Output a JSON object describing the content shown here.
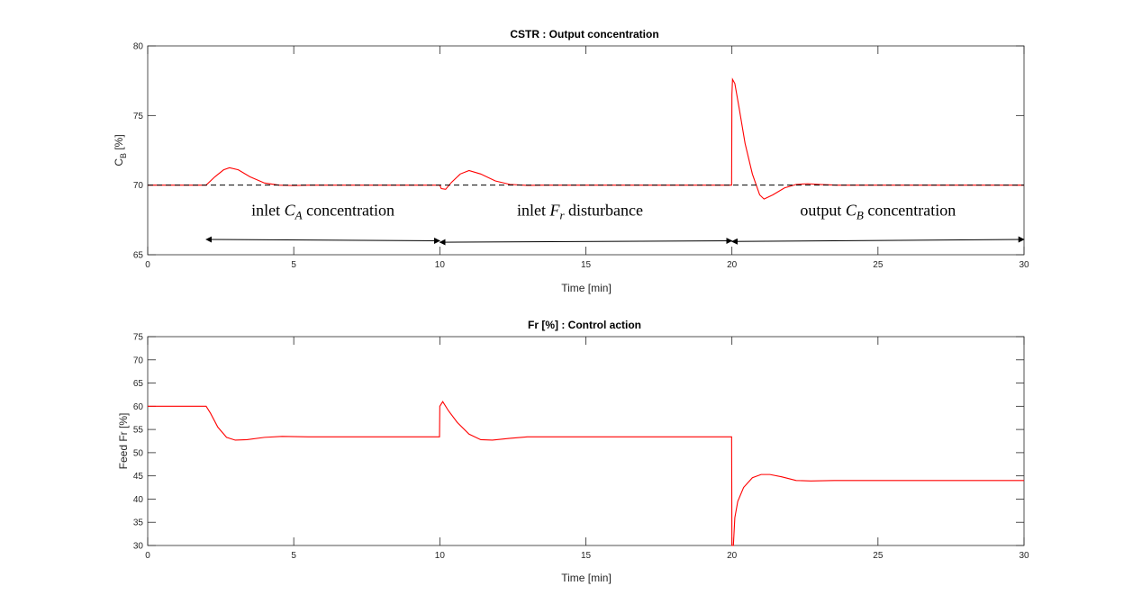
{
  "chart_data": [
    {
      "type": "line",
      "title": "CSTR : Output concentration",
      "xlabel": "Time [min]",
      "ylabel": "C",
      "ylabel_sub": "B",
      "ylabel_unit": " [%]",
      "xlim": [
        0,
        30
      ],
      "ylim": [
        65,
        80
      ],
      "xticks": [
        "0",
        "5",
        "10",
        "15",
        "20",
        "25",
        "30"
      ],
      "yticks": [
        "65",
        "70",
        "75",
        "80"
      ],
      "grid": false,
      "series": [
        {
          "color": "#ff0000",
          "style": "solid",
          "x": [
            0,
            2,
            2.3,
            2.6,
            2.8,
            3.1,
            3.5,
            4.0,
            4.5,
            5.0,
            5.5,
            6.0,
            7,
            8,
            10,
            10.05,
            10.2,
            10.4,
            10.7,
            11.0,
            11.4,
            11.9,
            12.4,
            13.0,
            13.5,
            14,
            16,
            18,
            19.99,
            20.0,
            20.02,
            20.1,
            20.25,
            20.45,
            20.7,
            20.95,
            21.1,
            21.4,
            21.8,
            22.2,
            22.6,
            23.0,
            23.6,
            24.2,
            25,
            27,
            30
          ],
          "y": [
            70.0,
            70.0,
            70.6,
            71.1,
            71.25,
            71.1,
            70.6,
            70.15,
            70.0,
            69.97,
            70.0,
            70.0,
            70.0,
            70.0,
            70.0,
            69.75,
            69.7,
            70.2,
            70.8,
            71.05,
            70.8,
            70.3,
            70.05,
            69.98,
            70.0,
            70.0,
            70.0,
            70.0,
            70.0,
            76.5,
            77.6,
            77.3,
            75.5,
            73.0,
            70.8,
            69.3,
            69.0,
            69.3,
            69.8,
            70.05,
            70.1,
            70.05,
            70.0,
            70.0,
            70.0,
            70.0,
            70.0
          ]
        },
        {
          "color": "#000000",
          "style": "dashed",
          "x": [
            0,
            30
          ],
          "y": [
            70,
            70
          ]
        }
      ],
      "annotations": [
        {
          "text": "inlet ",
          "math": "C",
          "sub": "A",
          "rest": " concentration",
          "x": 6.0,
          "y": 67.8
        },
        {
          "text": "inlet ",
          "math": "F",
          "sub": "r",
          "rest": " disturbance",
          "x": 14.8,
          "y": 67.8
        },
        {
          "text": "output ",
          "math": "C",
          "sub": "B",
          "rest": " concentration",
          "x": 25.0,
          "y": 67.8
        }
      ],
      "arrows": [
        {
          "x1": 2.0,
          "y1": 66.1,
          "x2": 10.0,
          "y2": 66.0
        },
        {
          "x1": 10.0,
          "y1": 65.9,
          "x2": 20.0,
          "y2": 66.0
        },
        {
          "x1": 20.0,
          "y1": 65.95,
          "x2": 30.0,
          "y2": 66.1
        }
      ]
    },
    {
      "type": "line",
      "title": "Fr [%] : Control action",
      "xlabel": "Time [min]",
      "ylabel": "Feed Fr [%]",
      "xlim": [
        0,
        30
      ],
      "ylim": [
        30,
        75
      ],
      "xticks": [
        "0",
        "5",
        "10",
        "15",
        "20",
        "25",
        "30"
      ],
      "yticks": [
        "30",
        "35",
        "40",
        "45",
        "50",
        "55",
        "60",
        "65",
        "70",
        "75"
      ],
      "grid": false,
      "series": [
        {
          "color": "#ff0000",
          "style": "solid",
          "x": [
            0,
            2,
            2.15,
            2.4,
            2.7,
            3.0,
            3.4,
            4.0,
            4.6,
            5.5,
            7,
            9,
            9.99,
            10.0,
            10.1,
            10.3,
            10.6,
            11.0,
            11.4,
            11.8,
            12.4,
            13.0,
            14,
            16,
            18,
            19.99,
            20.0,
            20.05,
            20.1,
            20.2,
            20.4,
            20.7,
            21.0,
            21.3,
            21.7,
            22.2,
            22.7,
            23.5,
            25,
            27,
            30
          ],
          "y": [
            60,
            60,
            58.5,
            55.5,
            53.3,
            52.7,
            52.8,
            53.3,
            53.5,
            53.4,
            53.4,
            53.4,
            53.4,
            60.0,
            61.0,
            59.0,
            56.5,
            54.0,
            52.8,
            52.7,
            53.1,
            53.4,
            53.4,
            53.4,
            53.4,
            53.4,
            30.0,
            30.0,
            36.0,
            39.5,
            42.5,
            44.6,
            45.3,
            45.3,
            44.8,
            44.0,
            43.9,
            44.0,
            44.0,
            44.0,
            44.0
          ]
        }
      ]
    }
  ]
}
